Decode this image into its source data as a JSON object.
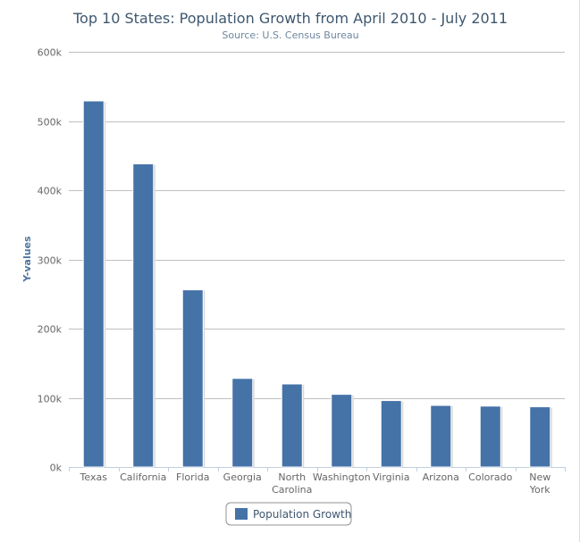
{
  "chart_data": {
    "type": "bar",
    "title": "Top 10 States: Population Growth from April 2010 - July 2011",
    "subtitle": "Source: U.S. Census Bureau",
    "xlabel": "",
    "ylabel": "Y-values",
    "categories": [
      "Texas",
      "California",
      "Florida",
      "Georgia",
      "North Carolina",
      "Washington",
      "Virginia",
      "Arizona",
      "Colorado",
      "New York"
    ],
    "category_lines": [
      [
        "Texas"
      ],
      [
        "California"
      ],
      [
        "Florida"
      ],
      [
        "Georgia"
      ],
      [
        "North",
        "Carolina"
      ],
      [
        "Washington"
      ],
      [
        "Virginia"
      ],
      [
        "Arizona"
      ],
      [
        "Colorado"
      ],
      [
        "New",
        "York"
      ]
    ],
    "series": [
      {
        "name": "Population Growth",
        "color": "#4572a7",
        "values": [
          529000,
          438000,
          256000,
          128000,
          120000,
          105000,
          96000,
          89000,
          88000,
          87000
        ]
      }
    ],
    "ylim": [
      0,
      600000
    ],
    "yticks": [
      0,
      100000,
      200000,
      300000,
      400000,
      500000,
      600000
    ],
    "ytick_labels": [
      "0k",
      "100k",
      "200k",
      "300k",
      "400k",
      "500k",
      "600k"
    ],
    "grid": true,
    "legend": "bottom-center"
  }
}
